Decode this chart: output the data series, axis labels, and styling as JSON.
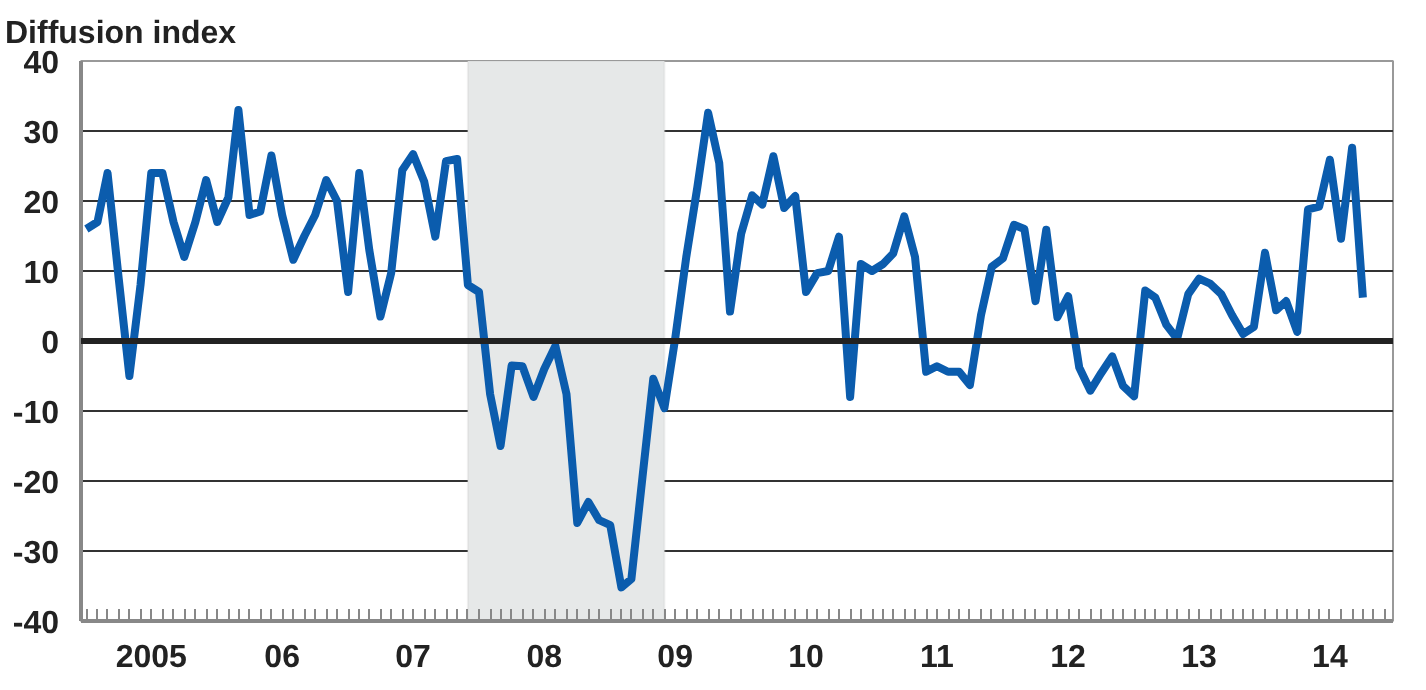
{
  "chart_data": {
    "type": "line",
    "title": "Diffusion index",
    "x": [
      "2005-01",
      "2005-02",
      "2005-03",
      "2005-04",
      "2005-05",
      "2005-06",
      "2005-07",
      "2005-08",
      "2005-09",
      "2005-10",
      "2005-11",
      "2005-12",
      "2006-01",
      "2006-02",
      "2006-03",
      "2006-04",
      "2006-05",
      "2006-06",
      "2006-07",
      "2006-08",
      "2006-09",
      "2006-10",
      "2006-11",
      "2006-12",
      "2007-01",
      "2007-02",
      "2007-03",
      "2007-04",
      "2007-05",
      "2007-06",
      "2007-07",
      "2007-08",
      "2007-09",
      "2007-10",
      "2007-11",
      "2007-12",
      "2008-01",
      "2008-02",
      "2008-03",
      "2008-04",
      "2008-05",
      "2008-06",
      "2008-07",
      "2008-08",
      "2008-09",
      "2008-10",
      "2008-11",
      "2008-12",
      "2009-01",
      "2009-02",
      "2009-03",
      "2009-04",
      "2009-05",
      "2009-06",
      "2009-07",
      "2009-08",
      "2009-09",
      "2009-10",
      "2009-11",
      "2009-12",
      "2010-01",
      "2010-02",
      "2010-03",
      "2010-04",
      "2010-05",
      "2010-06",
      "2010-07",
      "2010-08",
      "2010-09",
      "2010-10",
      "2010-11",
      "2010-12",
      "2011-01",
      "2011-02",
      "2011-03",
      "2011-04",
      "2011-05",
      "2011-06",
      "2011-07",
      "2011-08",
      "2011-09",
      "2011-10",
      "2011-11",
      "2011-12",
      "2012-01",
      "2012-02",
      "2012-03",
      "2012-04",
      "2012-05",
      "2012-06",
      "2012-07",
      "2012-08",
      "2012-09",
      "2012-10",
      "2012-11",
      "2012-12",
      "2013-01",
      "2013-02",
      "2013-03",
      "2013-04",
      "2013-05",
      "2013-06",
      "2013-07",
      "2013-08",
      "2013-09",
      "2013-10",
      "2013-11",
      "2013-12",
      "2014-01",
      "2014-02",
      "2014-03",
      "2014-04",
      "2014-05",
      "2014-06",
      "2014-07",
      "2014-08",
      "2014-09",
      "2014-10"
    ],
    "xlim": [
      "2004-12-17",
      "2014-12-24"
    ],
    "xticks": [
      {
        "value": "2005-07-01",
        "label": "2005"
      },
      {
        "value": "2006-07-01",
        "label": "06"
      },
      {
        "value": "2007-07-01",
        "label": "07"
      },
      {
        "value": "2008-07-01",
        "label": "08"
      },
      {
        "value": "2009-07-01",
        "label": "09"
      },
      {
        "value": "2010-07-01",
        "label": "10"
      },
      {
        "value": "2011-07-01",
        "label": "11"
      },
      {
        "value": "2012-07-01",
        "label": "12"
      },
      {
        "value": "2013-07-01",
        "label": "13"
      },
      {
        "value": "2014-07-01",
        "label": "14"
      }
    ],
    "ylim": [
      -40,
      40
    ],
    "yticks": [
      -40,
      -30,
      -20,
      -10,
      0,
      10,
      20,
      30,
      40
    ],
    "grid": "y",
    "bands": [
      {
        "axis": "x",
        "from": "2007-12-01",
        "to": "2009-06-01",
        "color": "#e6e8e8"
      }
    ],
    "ref_lines": [
      {
        "axis": "y",
        "value": 0,
        "color": "#222222"
      }
    ],
    "series": [
      {
        "color": "#0b5cad",
        "values": [
          16,
          17,
          24,
          9,
          -5,
          8,
          24,
          24,
          17,
          12,
          17,
          23,
          17,
          20.5,
          33,
          18,
          18.5,
          26.5,
          18,
          11.6,
          15,
          18,
          23,
          20,
          7,
          24,
          13,
          3.5,
          9.7,
          24.4,
          26.7,
          22.8,
          14.9,
          25.7,
          26,
          8,
          7,
          -7.6,
          -15,
          -3.5,
          -3.6,
          -8,
          -4,
          -0.7,
          -7.6,
          -26,
          -23,
          -25.6,
          -26.3,
          -35.2,
          -34,
          -19.4,
          -5.4,
          -9.6,
          0.3,
          12,
          22,
          32.6,
          25.4,
          4.2,
          15.3,
          20.8,
          19.5,
          26.4,
          19,
          20.7,
          7,
          9.7,
          10,
          14.9,
          -8,
          11,
          10,
          11,
          12.5,
          17.8,
          12,
          -4.4,
          -3.6,
          -4.4,
          -4.4,
          -6.3,
          3.7,
          10.6,
          11.8,
          16.6,
          16,
          5.7,
          15.9,
          3.4,
          6.4,
          -3.8,
          -7.1,
          -4.6,
          -2.2,
          -6.4,
          -7.9,
          7.2,
          6.2,
          2.3,
          0.3,
          6.7,
          8.9,
          8.2,
          6.7,
          3.7,
          1,
          2,
          12.6,
          4.4,
          5.7,
          1.3,
          18.8,
          19.2,
          25.9,
          14.6,
          27.6,
          6.2
        ]
      }
    ]
  }
}
